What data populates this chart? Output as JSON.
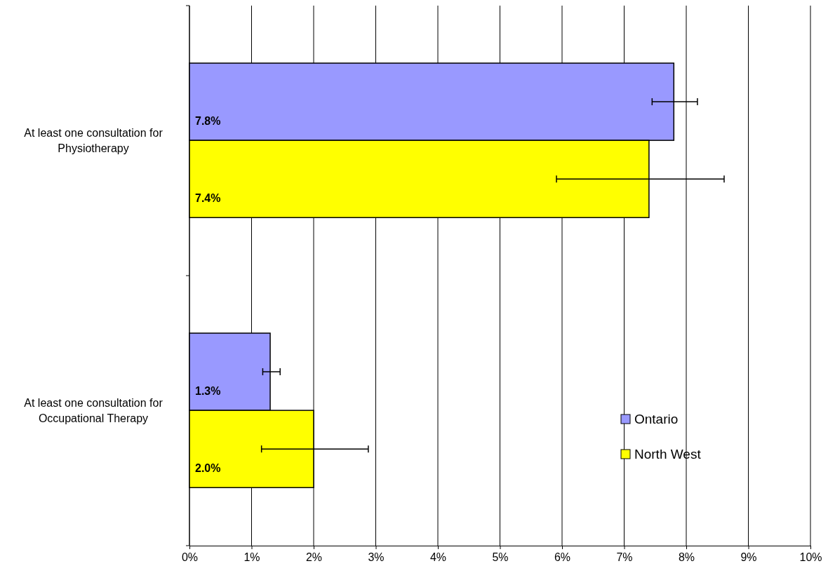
{
  "chart_data": {
    "type": "bar",
    "orientation": "horizontal",
    "categories": [
      "At least one consultation for Physiotherapy",
      "At least one consultation for Occupational Therapy"
    ],
    "series": [
      {
        "name": "Ontario",
        "color": "#9999ff",
        "values": [
          7.8,
          1.3
        ],
        "errors": [
          [
            7.45,
            8.18
          ],
          [
            1.18,
            1.46
          ]
        ],
        "value_labels": [
          "7.8%",
          "1.3%"
        ]
      },
      {
        "name": "North West",
        "color": "#ffff00",
        "values": [
          7.4,
          2.0
        ],
        "errors": [
          [
            5.91,
            8.61
          ],
          [
            1.16,
            2.88
          ]
        ],
        "value_labels": [
          "7.4%",
          "2.0%"
        ]
      }
    ],
    "xlim": [
      0,
      10
    ],
    "xticks": [
      {
        "value": 0,
        "label": "0%"
      },
      {
        "value": 1,
        "label": "1%"
      },
      {
        "value": 2,
        "label": "2%"
      },
      {
        "value": 3,
        "label": "3%"
      },
      {
        "value": 4,
        "label": "4%"
      },
      {
        "value": 5,
        "label": "5%"
      },
      {
        "value": 6,
        "label": "6%"
      },
      {
        "value": 7,
        "label": "7%"
      },
      {
        "value": 8,
        "label": "8%"
      },
      {
        "value": 9,
        "label": "9%"
      },
      {
        "value": 10,
        "label": "10%"
      }
    ],
    "grid": "x",
    "legend": "bottom right"
  }
}
